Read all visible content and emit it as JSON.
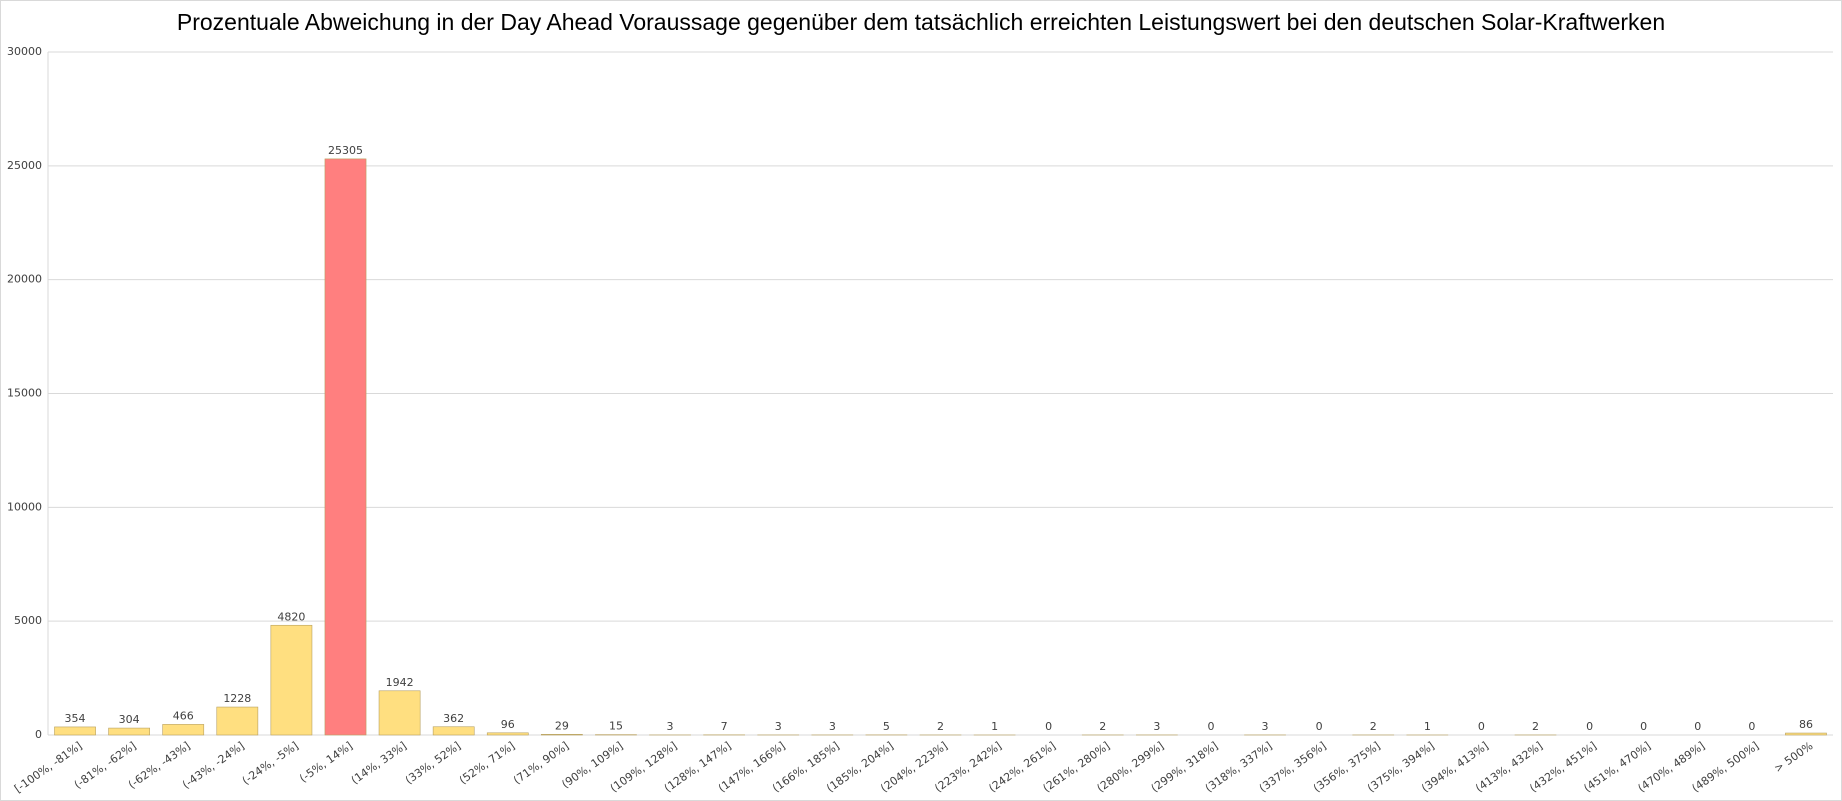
{
  "chart_data": {
    "type": "bar",
    "title": "Prozentuale Abweichung in der Day Ahead Voraussage gegenüber dem tatsächlich erreichten Leistungswert bei den deutschen Solar-Kraftwerken",
    "categories": [
      "[-100%, -81%]",
      "(-81%, -62%]",
      "(-62%, -43%]",
      "(-43%, -24%]",
      "(-24%, -5%]",
      "(-5%, 14%]",
      "(14%, 33%]",
      "(33%, 52%]",
      "(52%, 71%]",
      "(71%, 90%]",
      "(90%, 109%]",
      "(109%, 128%]",
      "(128%, 147%]",
      "(147%, 166%]",
      "(166%, 185%]",
      "(185%, 204%]",
      "(204%, 223%]",
      "(223%, 242%]",
      "(242%, 261%]",
      "(261%, 280%]",
      "(280%, 299%]",
      "(299%, 318%]",
      "(318%, 337%]",
      "(337%, 356%]",
      "(356%, 375%]",
      "(375%, 394%]",
      "(394%, 413%]",
      "(413%, 432%]",
      "(432%, 451%]",
      "(451%, 470%]",
      "(470%, 489%]",
      "(489%, 500%]",
      "> 500%"
    ],
    "values": [
      354,
      304,
      466,
      1228,
      4820,
      25305,
      1942,
      362,
      96,
      29,
      15,
      3,
      7,
      3,
      3,
      5,
      2,
      1,
      0,
      2,
      3,
      0,
      3,
      0,
      2,
      1,
      0,
      2,
      0,
      0,
      0,
      0,
      86
    ],
    "colors": [
      "#ffdf80",
      "#ffdf80",
      "#ffdf80",
      "#ffdf80",
      "#ffdf80",
      "#ff7f7f",
      "#ffdf80",
      "#ffdf80",
      "#ffdf80",
      "#ffdf80",
      "#ffdf80",
      "#ffdf80",
      "#ffdf80",
      "#ffdf80",
      "#ffdf80",
      "#ffdf80",
      "#ffdf80",
      "#ffdf80",
      "#ffdf80",
      "#ffdf80",
      "#ffdf80",
      "#ffdf80",
      "#ffdf80",
      "#ffdf80",
      "#ffdf80",
      "#ffdf80",
      "#ffdf80",
      "#ffdf80",
      "#ffdf80",
      "#ffdf80",
      "#ffdf80",
      "#ffdf80",
      "#ffdf80"
    ],
    "ylim": [
      0,
      30000
    ],
    "yticks": [
      0,
      5000,
      10000,
      15000,
      20000,
      25000,
      30000
    ],
    "grid": true
  }
}
